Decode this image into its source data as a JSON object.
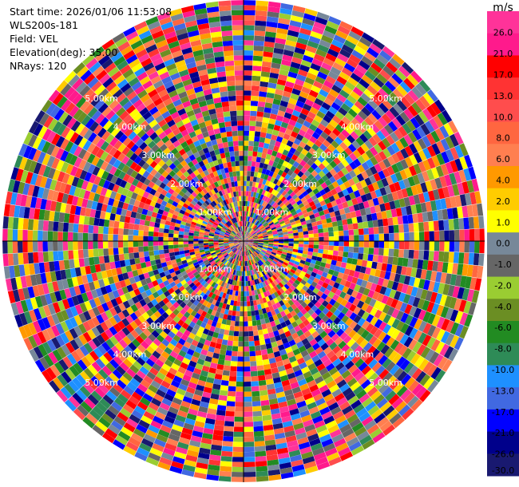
{
  "info": {
    "start_time": "Start time: 2026/01/06 11:53:08",
    "instrument": "WLS200s-181",
    "field": "Field: VEL",
    "elevation": "Elevation(deg): 35.00",
    "nrays": "NRays: 120"
  },
  "chart_data": {
    "type": "heatmap",
    "projection": "polar-ppi",
    "field": "VEL",
    "elevation_deg": 35.0,
    "n_rays": 120,
    "max_range_km": 6.0,
    "range_ring_labels": [
      "1.00km",
      "2.00km",
      "3.00km",
      "4.00km",
      "5.00km"
    ],
    "colorbar": {
      "unit": "m/s",
      "tick_labels": [
        "26.0",
        "21.0",
        "17.0",
        "13.0",
        "10.0",
        "8.0",
        "6.0",
        "4.0",
        "2.0",
        "1.0",
        "0.0",
        "-1.0",
        "-2.0",
        "-4.0",
        "-6.0",
        "-8.0",
        "-10.0",
        "-13.0",
        "-17.0",
        "-21.0",
        "-26.0",
        "-30.0"
      ],
      "colors": [
        "#ff3399",
        "#ff1a8c",
        "#ff0000",
        "#ff3333",
        "#ff4d4d",
        "#ff6640",
        "#ff7f50",
        "#ff9900",
        "#ffcc00",
        "#ffff00",
        "#778899",
        "#666666",
        "#9acd32",
        "#6b8e23",
        "#228b22",
        "#2e8b57",
        "#1e90ff",
        "#4169e1",
        "#0000ff",
        "#00008b",
        "#191970"
      ]
    }
  }
}
